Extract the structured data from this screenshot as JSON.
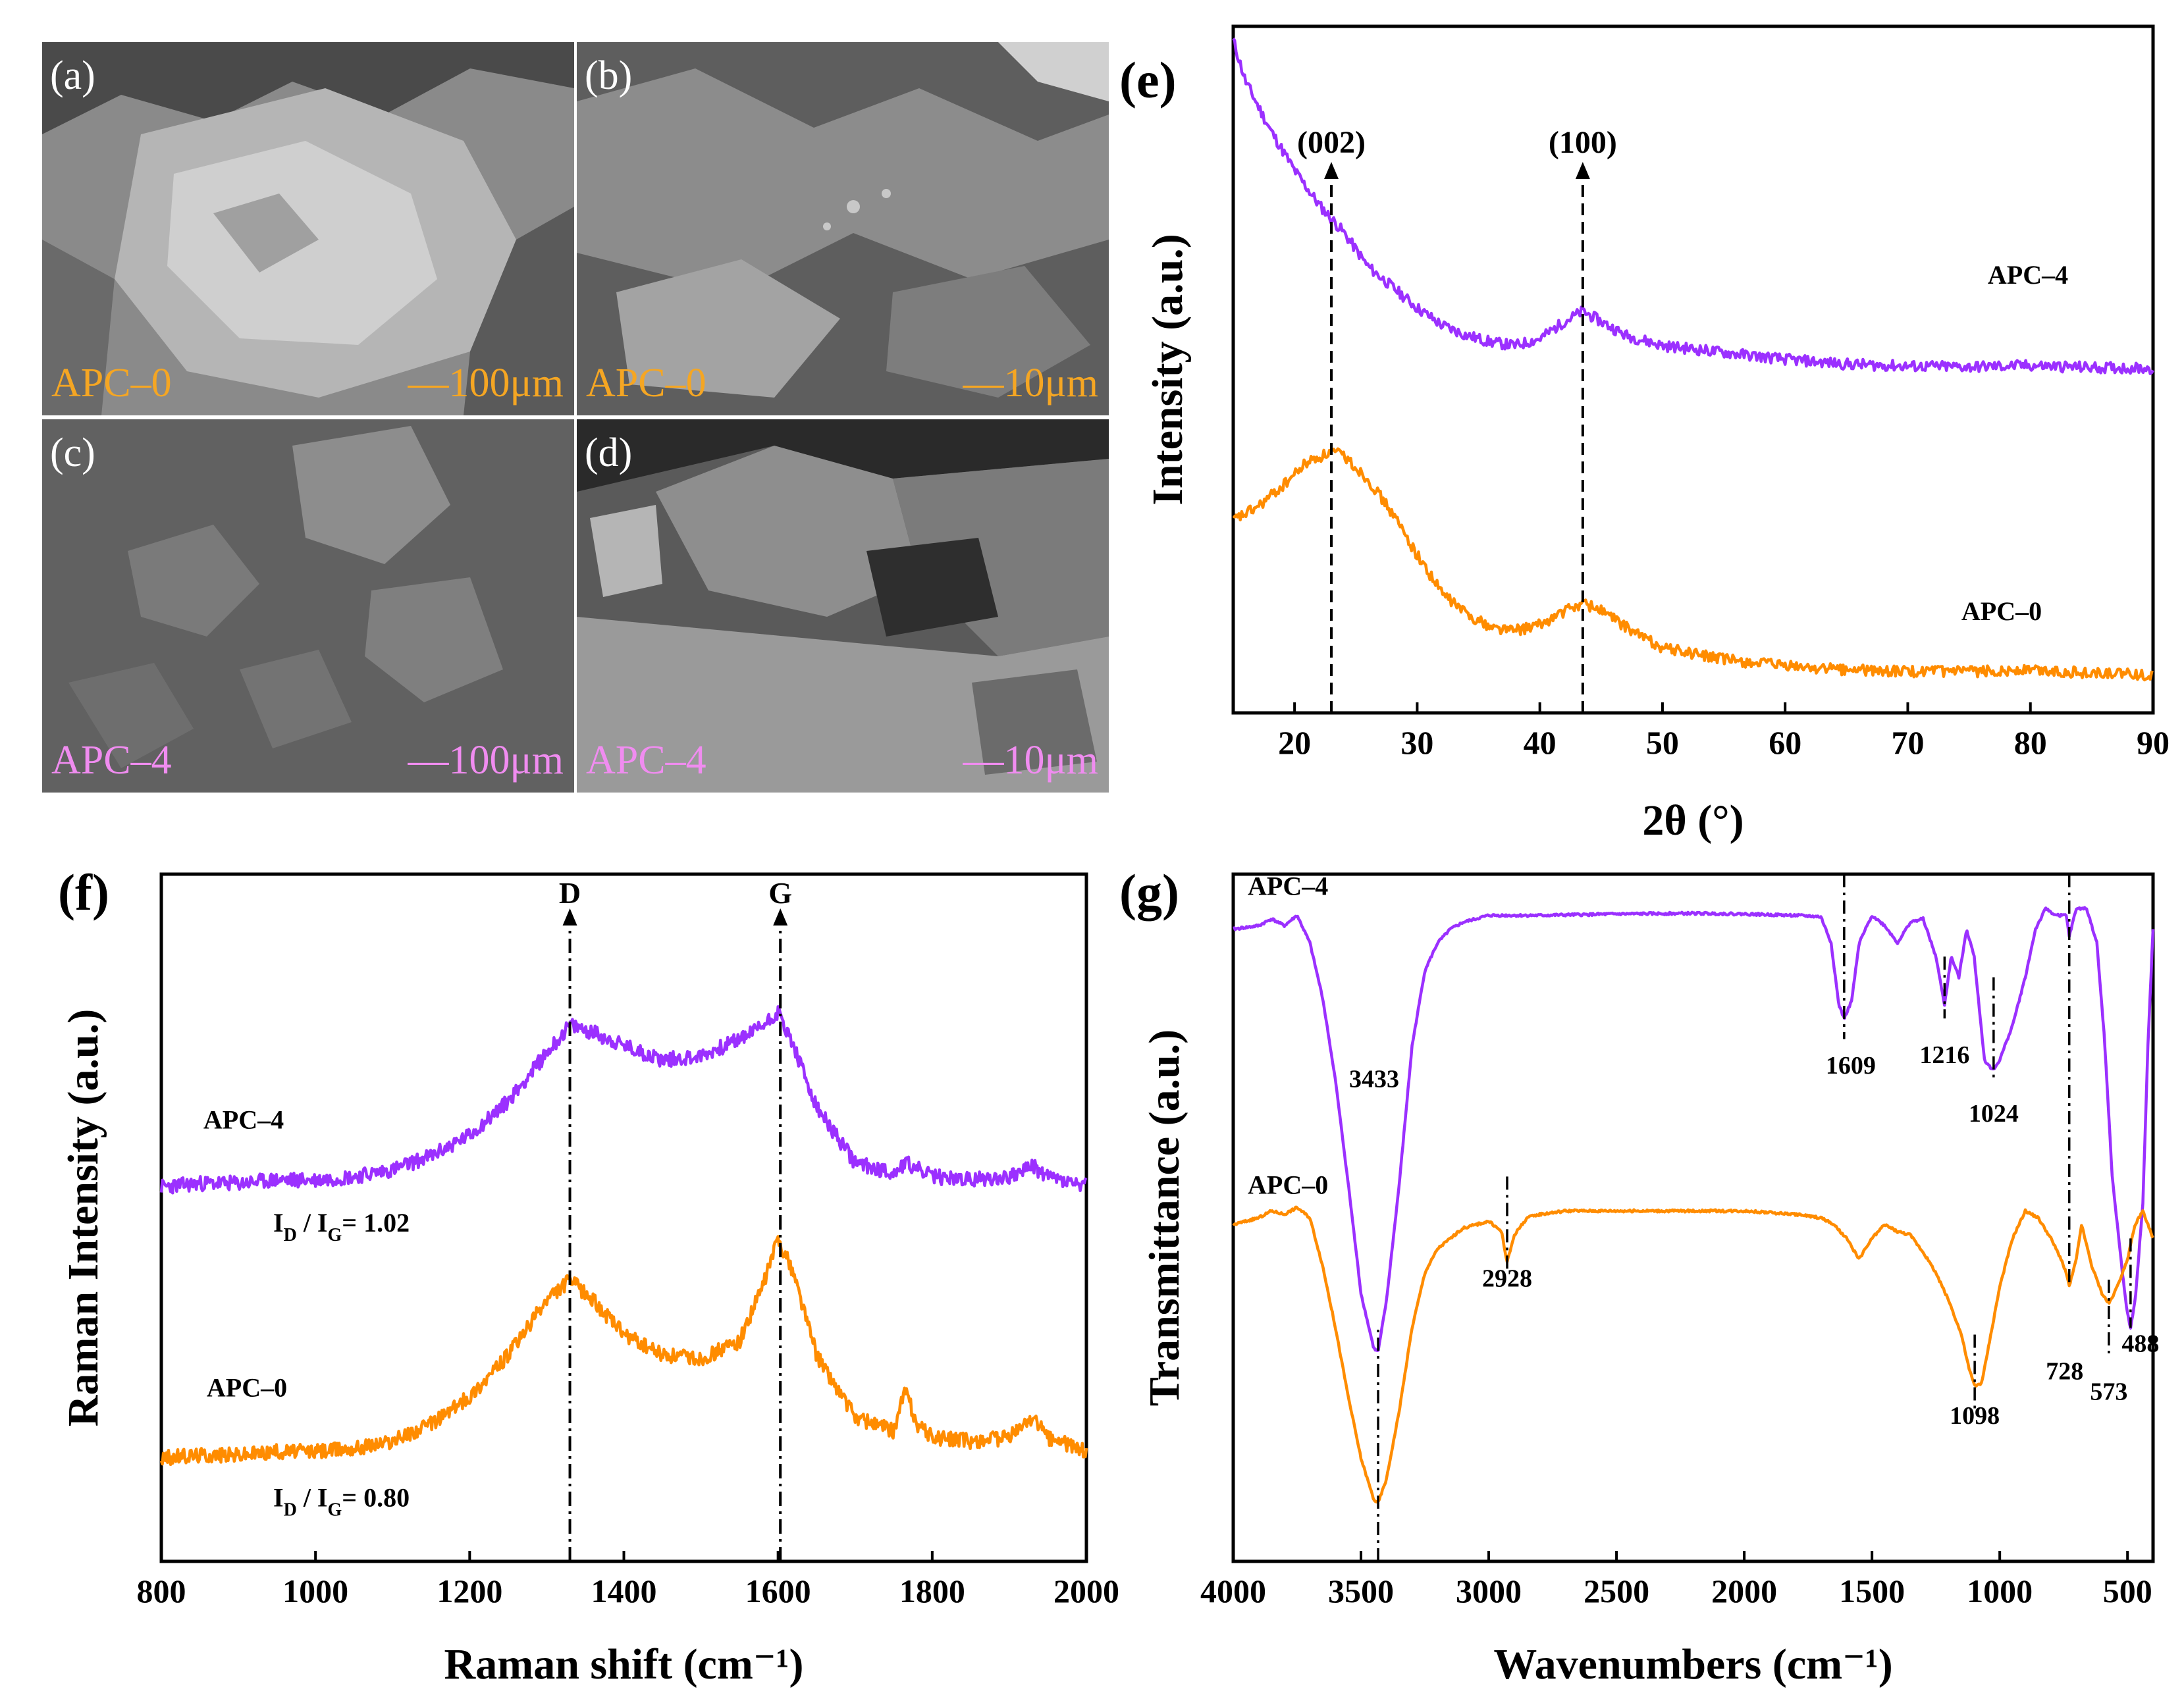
{
  "sem_panels": [
    {
      "letter": "(a)",
      "sample": "APC–0",
      "scale_bar": "—100μm",
      "label_color": "#f5a623"
    },
    {
      "letter": "(b)",
      "sample": "APC–0",
      "scale_bar": "—10μm",
      "label_color": "#f5a623"
    },
    {
      "letter": "(c)",
      "sample": "APC–4",
      "scale_bar": "—100μm",
      "label_color": "#f08cf0"
    },
    {
      "letter": "(d)",
      "sample": "APC–4",
      "scale_bar": "—10μm",
      "label_color": "#f08cf0"
    }
  ],
  "colors": {
    "purple": "#9b30ff",
    "orange": "#ff8c00",
    "axis": "#000000"
  },
  "chart_data": [
    {
      "panel": "(e)",
      "type": "line",
      "title": "",
      "xlabel": "2θ (°)",
      "ylabel": "Intensity (a.u.)",
      "xlim": [
        15,
        90
      ],
      "ylim": [
        0,
        100
      ],
      "xticks": [
        20,
        30,
        40,
        50,
        60,
        70,
        80,
        90
      ],
      "annotations": [
        {
          "label": "(002)",
          "x": 23
        },
        {
          "label": "(100)",
          "x": 43.5
        }
      ],
      "series": [
        {
          "name": "APC–4",
          "color": "#9b30ff",
          "x": [
            15,
            16,
            18,
            20,
            22,
            24,
            26,
            28,
            30,
            32,
            34,
            36,
            38,
            40,
            42,
            43.5,
            45,
            47,
            50,
            55,
            60,
            65,
            70,
            75,
            80,
            85,
            90
          ],
          "y": [
            98,
            92,
            85,
            79,
            74,
            70,
            65,
            62,
            59,
            56.5,
            55,
            54,
            53.5,
            54.5,
            57,
            58.5,
            57,
            55,
            53.5,
            52.5,
            51.5,
            50.8,
            50.5,
            50.4,
            50.6,
            50.3,
            50.2
          ]
        },
        {
          "name": "APC–0",
          "color": "#ff8c00",
          "x": [
            15,
            17,
            19,
            21,
            23,
            24,
            26,
            28,
            30,
            32,
            34,
            36,
            38,
            40,
            42,
            43.5,
            45,
            47,
            50,
            55,
            60,
            65,
            70,
            75,
            80,
            85,
            90
          ],
          "y": [
            28,
            30,
            33,
            36.5,
            38,
            37.5,
            34,
            29,
            23,
            17.5,
            14.5,
            12.5,
            12,
            12.8,
            14.8,
            16,
            15,
            12.5,
            9.5,
            7.8,
            6.8,
            6.3,
            6,
            6,
            6.3,
            5.8,
            5.5
          ]
        }
      ]
    },
    {
      "panel": "(f)",
      "type": "line",
      "title": "",
      "xlabel": "Raman shift (cm⁻¹)",
      "ylabel": "Raman Intensity (a.u.)",
      "xlim": [
        800,
        2000
      ],
      "ylim": [
        0,
        100
      ],
      "xticks": [
        800,
        1000,
        1200,
        1400,
        1600,
        1800,
        2000
      ],
      "annotations": [
        {
          "label": "D",
          "x": 1330
        },
        {
          "label": "G",
          "x": 1603
        },
        {
          "label": "I_D / I_G = 1.02",
          "series": "APC–4"
        },
        {
          "label": "I_D / I_G = 0.80",
          "series": "APC–0"
        }
      ],
      "ratio_labels": {
        "apc4": "1.02",
        "apc0": "0.80"
      },
      "series": [
        {
          "name": "APC–4",
          "color": "#9b30ff",
          "x": [
            800,
            850,
            900,
            950,
            1000,
            1050,
            1100,
            1150,
            1200,
            1250,
            1300,
            1330,
            1360,
            1400,
            1450,
            1500,
            1550,
            1580,
            1600,
            1620,
            1650,
            1700,
            1750,
            1765,
            1800,
            1850,
            1900,
            1930,
            1950,
            2000
          ],
          "y": [
            54.5,
            55,
            55,
            55.5,
            55.5,
            56,
            57,
            59,
            62,
            67,
            74,
            78,
            77,
            75,
            73,
            73.5,
            76,
            78,
            80,
            75,
            66,
            58,
            56.5,
            58,
            56,
            55.5,
            56,
            57.5,
            56,
            54.5
          ]
        },
        {
          "name": "APC–0",
          "color": "#ff8c00",
          "x": [
            800,
            850,
            900,
            950,
            1000,
            1050,
            1100,
            1150,
            1200,
            1250,
            1300,
            1330,
            1360,
            1400,
            1450,
            1500,
            1550,
            1580,
            1600,
            1620,
            1650,
            1700,
            1750,
            1765,
            1780,
            1800,
            1850,
            1900,
            1930,
            1950,
            2000
          ],
          "y": [
            15,
            15.5,
            15.5,
            16,
            16,
            16.5,
            17.5,
            20,
            24,
            30,
            38,
            41,
            38,
            33,
            30,
            29.5,
            32,
            40,
            47,
            42,
            30,
            21,
            19,
            25,
            20,
            18,
            17.5,
            18,
            21,
            18,
            16
          ]
        }
      ]
    },
    {
      "panel": "(g)",
      "type": "line",
      "title": "",
      "xlabel": "Wavenumbers (cm⁻¹)",
      "ylabel": "Transmittance (a.u.)",
      "xlim": [
        4000,
        400
      ],
      "ylim": [
        0,
        100
      ],
      "xticks": [
        4000,
        3500,
        3000,
        2500,
        2000,
        1500,
        1000,
        500
      ],
      "series_labels": [
        "APC–4",
        "APC–0"
      ],
      "peak_labels": [
        {
          "label": "3433",
          "x": 3433
        },
        {
          "label": "1609",
          "x": 1609
        },
        {
          "label": "1216",
          "x": 1216
        },
        {
          "label": "1024",
          "x": 1024
        },
        {
          "label": "488",
          "x": 488
        },
        {
          "label": "2928",
          "x": 2928
        },
        {
          "label": "1098",
          "x": 1098
        },
        {
          "label": "728",
          "x": 728
        },
        {
          "label": "573",
          "x": 573
        }
      ],
      "series": [
        {
          "name": "APC–4",
          "color": "#9b30ff",
          "x": [
            4000,
            3900,
            3850,
            3800,
            3750,
            3700,
            3650,
            3600,
            3550,
            3500,
            3450,
            3433,
            3400,
            3350,
            3300,
            3250,
            3200,
            3150,
            3100,
            3000,
            2800,
            2500,
            2200,
            2000,
            1800,
            1700,
            1660,
            1630,
            1609,
            1580,
            1550,
            1500,
            1450,
            1400,
            1350,
            1300,
            1250,
            1216,
            1190,
            1160,
            1130,
            1100,
            1060,
            1040,
            1024,
            1000,
            950,
            900,
            860,
            820,
            780,
            740,
            728,
            700,
            660,
            620,
            590,
            560,
            520,
            500,
            488,
            470,
            440,
            420,
            400
          ],
          "y": [
            92,
            92.5,
            93.5,
            92.5,
            94,
            90,
            82,
            70,
            55,
            39,
            31,
            30.5,
            38,
            55,
            75,
            86,
            90,
            92,
            93,
            94,
            94,
            94.2,
            94.3,
            94.2,
            94,
            93.8,
            90,
            81,
            79,
            81.5,
            90,
            94,
            92.5,
            90,
            93,
            93.5,
            88,
            81,
            88,
            85,
            92,
            88,
            73,
            72,
            71.5,
            73,
            78,
            85,
            92,
            95,
            94,
            94,
            91,
            95,
            95,
            90,
            76,
            56,
            42,
            36,
            34,
            38,
            52,
            75,
            92
          ]
        },
        {
          "name": "APC–0",
          "color": "#ff8c00",
          "x": [
            4000,
            3900,
            3850,
            3800,
            3750,
            3700,
            3650,
            3600,
            3550,
            3500,
            3450,
            3433,
            3400,
            3350,
            3300,
            3250,
            3200,
            3150,
            3100,
            3000,
            2950,
            2928,
            2900,
            2850,
            2800,
            2700,
            2500,
            2200,
            2000,
            1800,
            1700,
            1650,
            1600,
            1550,
            1500,
            1450,
            1400,
            1350,
            1300,
            1250,
            1200,
            1150,
            1120,
            1098,
            1070,
            1050,
            1000,
            950,
            900,
            850,
            800,
            760,
            740,
            728,
            700,
            680,
            660,
            640,
            600,
            573,
            540,
            500,
            470,
            440,
            420,
            400
          ],
          "y": [
            49,
            50,
            51,
            50.5,
            51.5,
            50,
            43,
            34,
            24,
            15,
            9,
            8.5,
            12,
            22,
            34,
            42,
            45.5,
            47,
            48.5,
            49.5,
            48,
            43.5,
            47.5,
            50,
            50.5,
            51,
            51,
            51,
            51,
            50.5,
            50,
            49,
            47,
            44,
            47,
            49,
            48,
            47.5,
            45,
            42,
            38,
            33,
            28,
            25.5,
            26,
            30,
            40,
            47,
            51,
            50,
            47,
            44,
            42,
            40,
            44,
            49,
            46,
            43,
            39,
            37.5,
            40,
            44,
            49,
            51,
            49,
            47
          ]
        }
      ]
    }
  ]
}
